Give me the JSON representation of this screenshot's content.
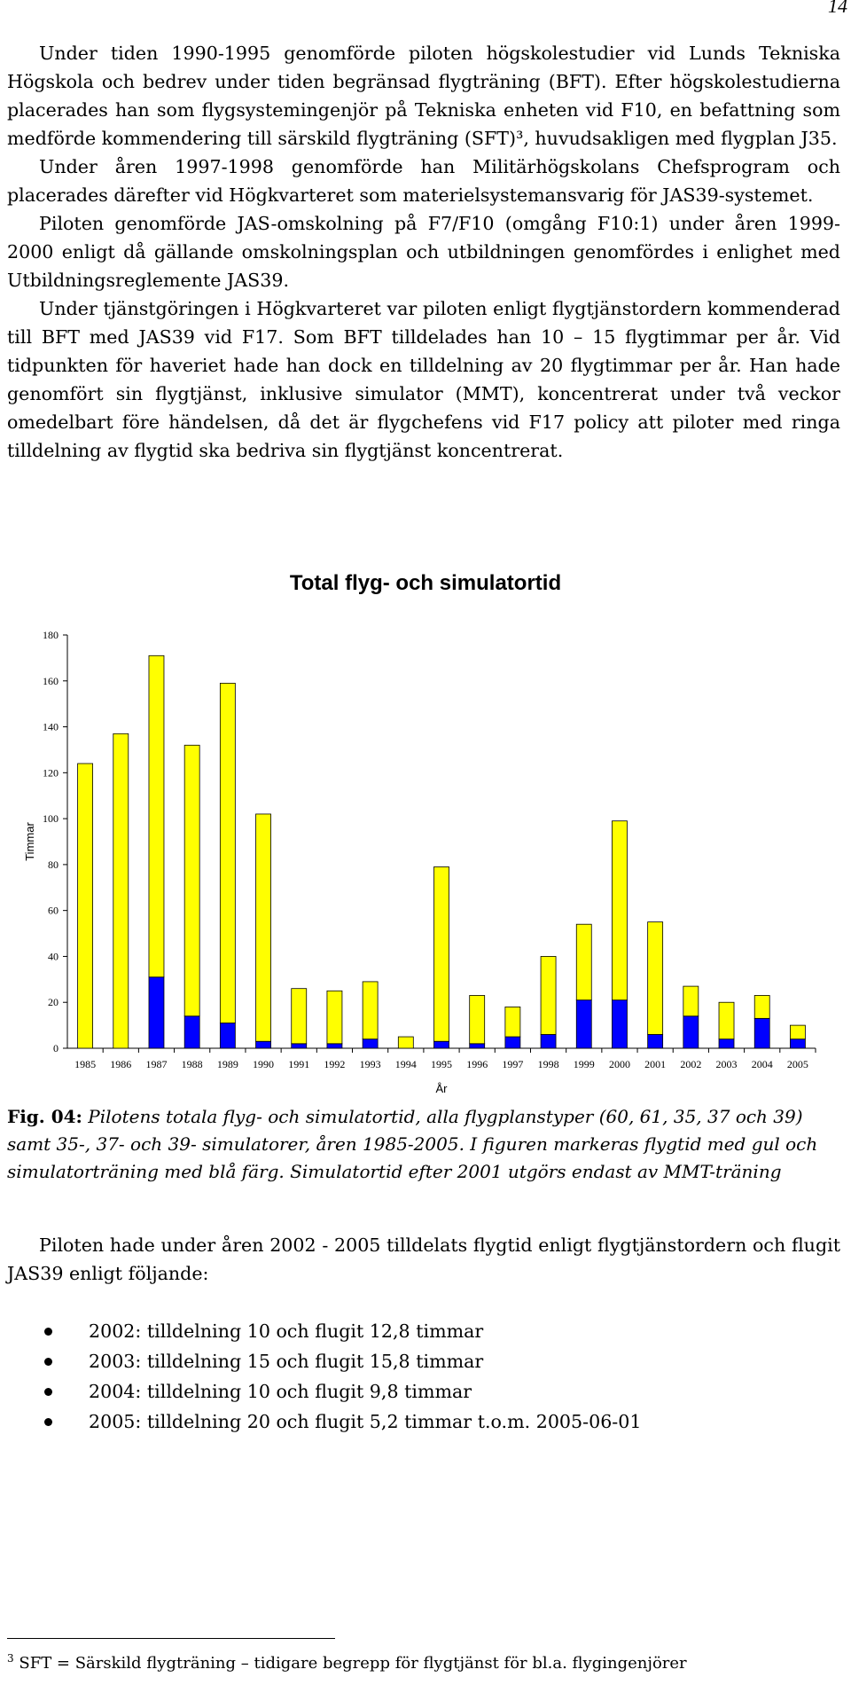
{
  "page_number": "14",
  "paragraphs": [
    "Under tiden 1990-1995 genomförde piloten högskolestudier vid Lunds Tekniska Högskola och bedrev under tiden begränsad flygträning (BFT). Efter högskolestudierna placerades han som flygsystemingenjör på Tekniska enheten vid F10, en befattning som medförde kommendering till särskild flygträning (SFT)³, huvudsakligen med flygplan J35.",
    "Under åren 1997-1998 genomförde han Militärhögskolans Chefsprogram och placerades därefter vid Högkvarteret som materielsystemansvarig för JAS39-systemet.",
    "Piloten genomförde JAS-omskolning på F7/F10 (omgång F10:1) under åren 1999-2000 enligt då gällande omskolningsplan och utbildningen genomfördes i enlighet med Utbildningsreglemente JAS39.",
    "Under tjänstgöringen i Högkvarteret var piloten enligt flygtjänstordern kommenderad till BFT med JAS39 vid F17. Som BFT tilldelades han 10 – 15 flygtimmar per år. Vid tidpunkten för haveriet hade han dock en tilldelning av 20 flygtimmar per år. Han hade genomfört sin flygtjänst, inklusive simulator (MMT), koncentrerat under två veckor omedelbart före händelsen, då det är flygchefens vid F17 policy att piloter med ringa tilldelning av flygtid ska bedriva sin flygtjänst koncentrerat."
  ],
  "chart_data": {
    "type": "bar",
    "stacked": true,
    "title": "Total flyg- och simulatortid",
    "xlabel": "År",
    "ylabel": "Timmar",
    "ylim": [
      0,
      180
    ],
    "yticks": [
      0,
      20,
      40,
      60,
      80,
      100,
      120,
      140,
      160,
      180
    ],
    "grid": false,
    "categories": [
      "1985",
      "1986",
      "1987",
      "1988",
      "1989",
      "1990",
      "1991",
      "1992",
      "1993",
      "1994",
      "1995",
      "1996",
      "1997",
      "1998",
      "1999",
      "2000",
      "2001",
      "2002",
      "2003",
      "2004",
      "2005"
    ],
    "series": [
      {
        "color": "#0000ff",
        "values": [
          0,
          0,
          31,
          14,
          11,
          3,
          2,
          2,
          4,
          0,
          3,
          2,
          5,
          6,
          21,
          21,
          6,
          14,
          4,
          13,
          4
        ]
      },
      {
        "color": "#ffff00",
        "values": [
          124,
          137,
          140,
          118,
          148,
          99,
          24,
          23,
          25,
          5,
          76,
          21,
          13,
          34,
          33,
          78,
          49,
          13,
          16,
          10,
          6
        ]
      }
    ]
  },
  "caption": {
    "label": "Fig. 04:",
    "text": "Pilotens totala flyg- och simulatortid, alla flygplanstyper (60, 61, 35, 37 och 39) samt 35-, 37- och 39- simulatorer, åren 1985-2005. I figuren markeras flygtid med gul och simulatorträning med blå färg. Simulatortid efter 2001 utgörs endast av MMT-träning"
  },
  "paragraph_after": "Piloten hade under åren 2002 - 2005 tilldelats flygtid enligt flygtjänstordern och flugit JAS39 enligt följande:",
  "bullets": [
    "2002: tilldelning 10 och flugit 12,8 timmar",
    "2003: tilldelning 15 och flugit 15,8 timmar",
    "2004: tilldelning 10 och flugit 9,8 timmar",
    "2005: tilldelning 20 och flugit 5,2 timmar t.o.m. 2005-06-01"
  ],
  "footnote": {
    "marker": "3",
    "text": "SFT = Särskild flygträning – tidigare begrepp för flygtjänst för bl.a. flygingenjörer"
  }
}
